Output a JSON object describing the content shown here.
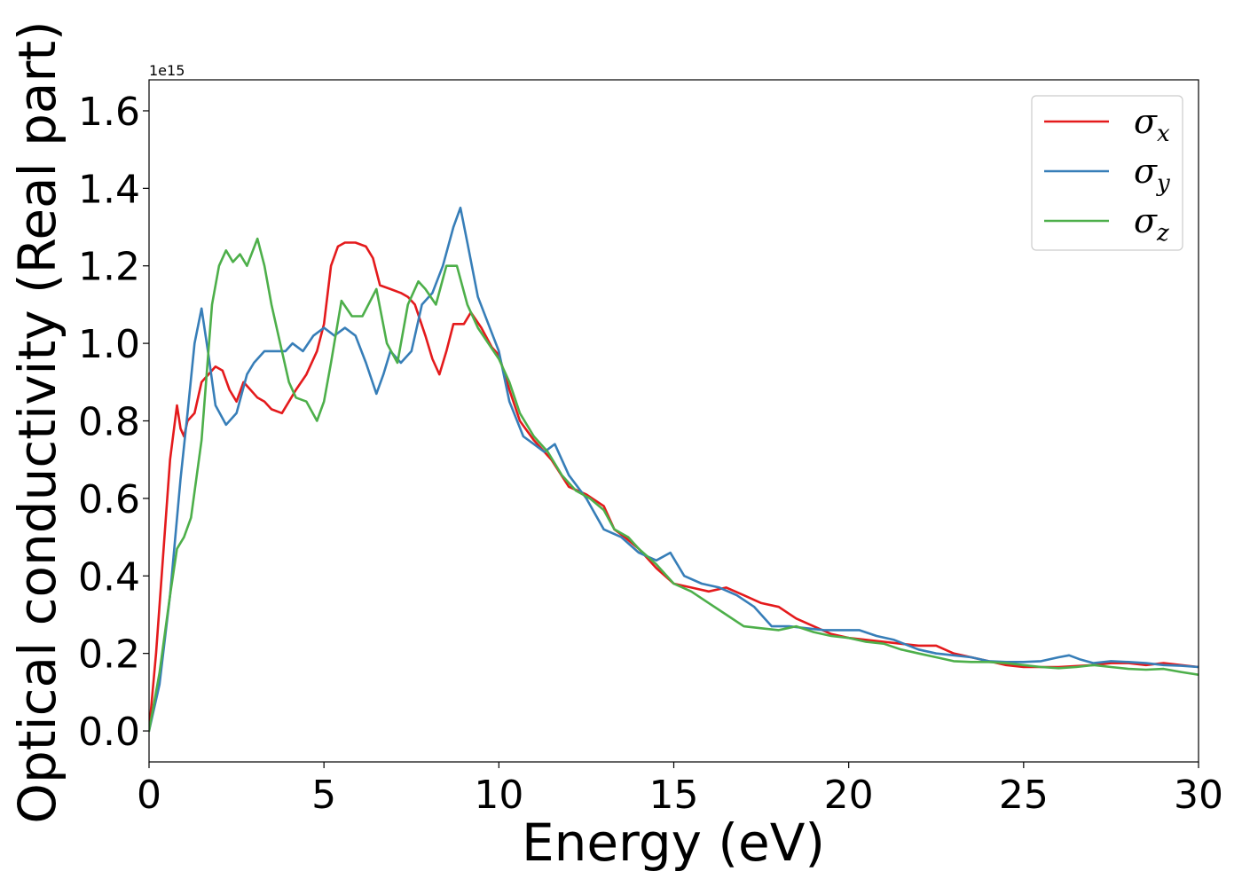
{
  "chart_data": {
    "type": "line",
    "title": "",
    "xlabel": "Energy (eV)",
    "ylabel": "Optical conductivity (Real part)",
    "y_offset_text": "1e15",
    "xlim": [
      0,
      30
    ],
    "ylim": [
      -0.08,
      1.68
    ],
    "x_ticks": [
      0,
      5,
      10,
      15,
      20,
      25,
      30
    ],
    "x_tick_labels": [
      "0",
      "5",
      "10",
      "15",
      "20",
      "25",
      "30"
    ],
    "y_ticks": [
      0.0,
      0.2,
      0.4,
      0.6,
      0.8,
      1.0,
      1.2,
      1.4,
      1.6
    ],
    "y_tick_labels": [
      "0.0",
      "0.2",
      "0.4",
      "0.6",
      "0.8",
      "1.0",
      "1.2",
      "1.4",
      "1.6"
    ],
    "grid": false,
    "legend_position": "top-right",
    "series": [
      {
        "name": "σx",
        "legend_base": "σ",
        "legend_sub": "x",
        "color": "#e41a1c",
        "x": [
          0,
          0.2,
          0.4,
          0.6,
          0.8,
          0.9,
          1.0,
          1.1,
          1.3,
          1.5,
          1.7,
          1.9,
          2.1,
          2.3,
          2.5,
          2.7,
          2.9,
          3.1,
          3.3,
          3.5,
          3.8,
          4.0,
          4.2,
          4.5,
          4.8,
          5.0,
          5.2,
          5.4,
          5.6,
          5.9,
          6.2,
          6.4,
          6.6,
          6.9,
          7.2,
          7.4,
          7.6,
          7.9,
          8.1,
          8.3,
          8.5,
          8.7,
          9.0,
          9.2,
          9.5,
          9.8,
          10.0,
          10.3,
          10.6,
          11.0,
          11.5,
          12.0,
          12.5,
          13.0,
          13.3,
          13.6,
          14.0,
          14.5,
          15.0,
          15.5,
          16.0,
          16.5,
          17.0,
          17.5,
          18.0,
          18.5,
          19.0,
          19.5,
          20.0,
          21.0,
          22.0,
          22.5,
          23.0,
          23.5,
          24.0,
          24.5,
          25.0,
          26.0,
          27.0,
          27.5,
          28.0,
          28.5,
          29.0,
          29.5,
          30.0
        ],
        "y": [
          0.0,
          0.2,
          0.45,
          0.7,
          0.84,
          0.78,
          0.76,
          0.8,
          0.82,
          0.9,
          0.92,
          0.94,
          0.93,
          0.88,
          0.85,
          0.9,
          0.88,
          0.86,
          0.85,
          0.83,
          0.82,
          0.85,
          0.88,
          0.92,
          0.98,
          1.05,
          1.2,
          1.25,
          1.26,
          1.26,
          1.25,
          1.22,
          1.15,
          1.14,
          1.13,
          1.12,
          1.1,
          1.02,
          0.96,
          0.92,
          0.98,
          1.05,
          1.05,
          1.08,
          1.04,
          0.99,
          0.97,
          0.88,
          0.8,
          0.75,
          0.7,
          0.63,
          0.61,
          0.58,
          0.52,
          0.5,
          0.47,
          0.42,
          0.38,
          0.37,
          0.36,
          0.37,
          0.35,
          0.33,
          0.32,
          0.29,
          0.27,
          0.25,
          0.24,
          0.23,
          0.22,
          0.22,
          0.2,
          0.19,
          0.18,
          0.17,
          0.165,
          0.165,
          0.17,
          0.175,
          0.175,
          0.17,
          0.175,
          0.17,
          0.165
        ]
      },
      {
        "name": "σy",
        "legend_base": "σ",
        "legend_sub": "y",
        "color": "#377eb8",
        "x": [
          0,
          0.3,
          0.6,
          0.9,
          1.1,
          1.3,
          1.5,
          1.7,
          1.9,
          2.2,
          2.5,
          2.8,
          3.0,
          3.3,
          3.6,
          3.9,
          4.1,
          4.4,
          4.7,
          5.0,
          5.3,
          5.6,
          5.9,
          6.2,
          6.5,
          6.7,
          6.9,
          7.2,
          7.5,
          7.8,
          8.1,
          8.4,
          8.7,
          8.9,
          9.1,
          9.4,
          9.7,
          10.0,
          10.3,
          10.7,
          11.0,
          11.3,
          11.6,
          12.0,
          12.5,
          13.0,
          13.5,
          14.0,
          14.5,
          14.9,
          15.3,
          15.8,
          16.3,
          16.8,
          17.3,
          17.8,
          18.3,
          18.8,
          19.3,
          19.8,
          20.3,
          20.8,
          21.3,
          22.0,
          22.5,
          23.0,
          23.5,
          24.0,
          24.5,
          25.0,
          25.5,
          26.0,
          26.3,
          26.6,
          27.0,
          27.5,
          28.0,
          28.5,
          29.0,
          29.5,
          30.0
        ],
        "y": [
          0.0,
          0.12,
          0.35,
          0.65,
          0.82,
          1.0,
          1.09,
          0.97,
          0.84,
          0.79,
          0.82,
          0.92,
          0.95,
          0.98,
          0.98,
          0.98,
          1.0,
          0.98,
          1.02,
          1.04,
          1.02,
          1.04,
          1.02,
          0.95,
          0.87,
          0.92,
          0.98,
          0.95,
          0.98,
          1.1,
          1.13,
          1.2,
          1.3,
          1.35,
          1.26,
          1.12,
          1.05,
          0.98,
          0.85,
          0.76,
          0.74,
          0.72,
          0.74,
          0.66,
          0.6,
          0.52,
          0.5,
          0.46,
          0.44,
          0.46,
          0.4,
          0.38,
          0.37,
          0.35,
          0.32,
          0.27,
          0.27,
          0.265,
          0.26,
          0.26,
          0.26,
          0.245,
          0.235,
          0.21,
          0.2,
          0.195,
          0.19,
          0.18,
          0.178,
          0.178,
          0.18,
          0.19,
          0.195,
          0.185,
          0.175,
          0.18,
          0.178,
          0.175,
          0.17,
          0.168,
          0.165
        ]
      },
      {
        "name": "σz",
        "legend_base": "σ",
        "legend_sub": "z",
        "color": "#4daf4a",
        "x": [
          0,
          0.3,
          0.6,
          0.8,
          1.0,
          1.2,
          1.5,
          1.8,
          2.0,
          2.2,
          2.4,
          2.6,
          2.8,
          3.1,
          3.3,
          3.5,
          3.8,
          4.0,
          4.2,
          4.5,
          4.8,
          5.0,
          5.2,
          5.5,
          5.8,
          6.1,
          6.5,
          6.8,
          7.1,
          7.4,
          7.7,
          7.9,
          8.2,
          8.5,
          8.8,
          9.1,
          9.4,
          9.7,
          10.0,
          10.3,
          10.6,
          11.0,
          11.4,
          11.8,
          12.2,
          12.6,
          13.0,
          13.3,
          13.7,
          14.0,
          14.5,
          15.0,
          15.5,
          16.0,
          16.5,
          17.0,
          17.5,
          18.0,
          18.5,
          19.0,
          19.5,
          20.0,
          20.5,
          21.0,
          21.5,
          22.0,
          22.5,
          23.0,
          23.5,
          24.0,
          24.5,
          25.0,
          25.5,
          26.0,
          26.5,
          27.0,
          27.5,
          28.0,
          28.5,
          29.0,
          29.5,
          30.0
        ],
        "y": [
          0.0,
          0.15,
          0.35,
          0.47,
          0.5,
          0.55,
          0.75,
          1.1,
          1.2,
          1.24,
          1.21,
          1.23,
          1.2,
          1.27,
          1.2,
          1.1,
          0.98,
          0.9,
          0.86,
          0.85,
          0.8,
          0.85,
          0.95,
          1.11,
          1.07,
          1.07,
          1.14,
          1.0,
          0.95,
          1.1,
          1.16,
          1.14,
          1.1,
          1.2,
          1.2,
          1.1,
          1.04,
          1.0,
          0.96,
          0.9,
          0.82,
          0.76,
          0.72,
          0.66,
          0.62,
          0.6,
          0.57,
          0.52,
          0.5,
          0.47,
          0.43,
          0.38,
          0.36,
          0.33,
          0.3,
          0.27,
          0.265,
          0.26,
          0.27,
          0.255,
          0.245,
          0.24,
          0.23,
          0.225,
          0.21,
          0.2,
          0.19,
          0.18,
          0.178,
          0.178,
          0.175,
          0.17,
          0.165,
          0.162,
          0.165,
          0.17,
          0.165,
          0.16,
          0.158,
          0.16,
          0.152,
          0.145
        ]
      }
    ]
  }
}
